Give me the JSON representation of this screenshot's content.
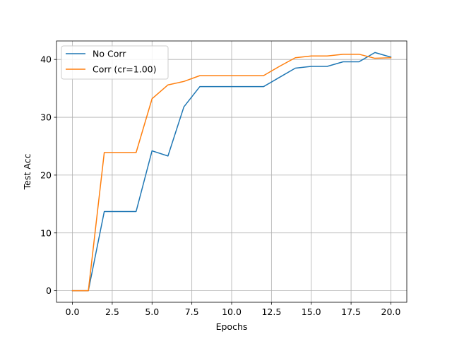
{
  "chart_data": {
    "type": "line",
    "title": "",
    "xlabel": "Epochs",
    "ylabel": "Test Acc",
    "xlim": [
      -1,
      21
    ],
    "ylim": [
      -2,
      43.2
    ],
    "xticks": [
      0.0,
      2.5,
      5.0,
      7.5,
      10.0,
      12.5,
      15.0,
      17.5,
      20.0
    ],
    "xtick_labels": [
      "0.0",
      "2.5",
      "5.0",
      "7.5",
      "10.0",
      "12.5",
      "15.0",
      "17.5",
      "20.0"
    ],
    "yticks": [
      0,
      10,
      20,
      30,
      40
    ],
    "ytick_labels": [
      "0",
      "10",
      "20",
      "30",
      "40"
    ],
    "grid": true,
    "legend_position": "top-left",
    "x": [
      0,
      1,
      2,
      3,
      4,
      5,
      6,
      7,
      8,
      9,
      10,
      11,
      12,
      13,
      14,
      15,
      16,
      17,
      18,
      19,
      20
    ],
    "series": [
      {
        "name": "No Corr",
        "color": "#1f77b4",
        "values": [
          0,
          0,
          13.7,
          13.7,
          13.7,
          24.2,
          23.3,
          31.8,
          35.3,
          35.3,
          35.3,
          35.3,
          35.3,
          36.9,
          38.5,
          38.8,
          38.8,
          39.6,
          39.6,
          41.2,
          40.4
        ]
      },
      {
        "name": "Corr (cr=1.00)",
        "color": "#ff7f0e",
        "values": [
          0,
          0,
          23.9,
          23.9,
          23.9,
          33.2,
          35.6,
          36.2,
          37.2,
          37.2,
          37.2,
          37.2,
          37.2,
          38.8,
          40.3,
          40.6,
          40.6,
          40.9,
          40.9,
          40.2,
          40.3
        ]
      }
    ]
  }
}
